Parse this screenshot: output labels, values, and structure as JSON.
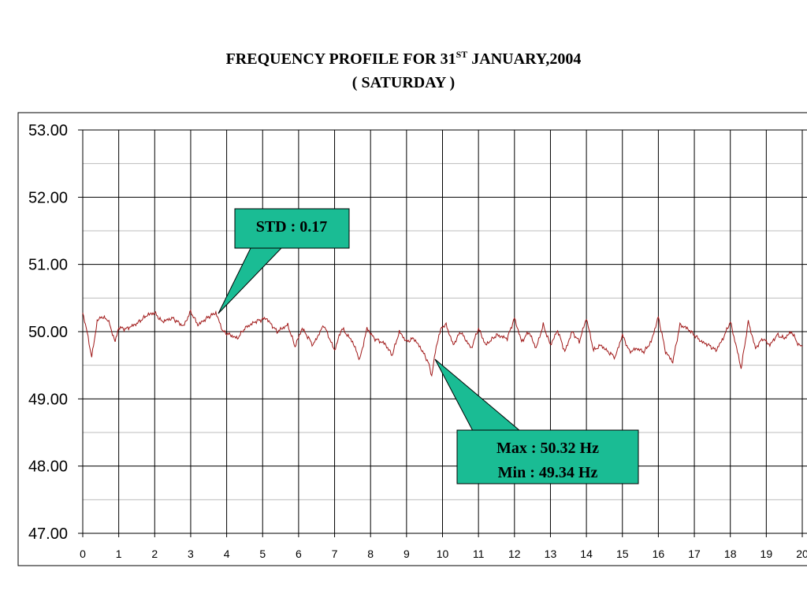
{
  "title": {
    "line1_pre": "FREQUENCY PROFILE FOR  31",
    "line1_sup": "ST",
    "line1_post": " JANUARY,2004",
    "line2": "( SATURDAY )"
  },
  "callouts": {
    "std": "STD : 0.17",
    "max": "Max : 50.32 Hz",
    "min": "Min  : 49.34 Hz"
  },
  "colors": {
    "series": "#a01818",
    "callout_fill": "#1abc94",
    "grid_major": "#000000",
    "grid_minor": "#bdbdbd"
  },
  "chart_data": {
    "type": "line",
    "title": "FREQUENCY PROFILE FOR  31ST JANUARY,2004 ( SATURDAY )",
    "xlabel": "",
    "ylabel": "",
    "xlim": [
      0,
      20
    ],
    "ylim": [
      47.0,
      53.0
    ],
    "y_ticks": [
      "47.00",
      "48.00",
      "49.00",
      "50.00",
      "51.00",
      "52.00",
      "53.00"
    ],
    "x_ticks": [
      "0",
      "1",
      "2",
      "3",
      "4",
      "5",
      "6",
      "7",
      "8",
      "9",
      "10",
      "11",
      "12",
      "13",
      "14",
      "15",
      "16",
      "17",
      "18",
      "19",
      "20"
    ],
    "grid": true,
    "series": [
      {
        "x": [
          0,
          0.1,
          0.25,
          0.4,
          0.5,
          0.7,
          0.9,
          1.0,
          1.2,
          1.5,
          1.8,
          2.0,
          2.2,
          2.5,
          2.8,
          3.0,
          3.2,
          3.5,
          3.7,
          3.9,
          4.1,
          4.3,
          4.5,
          4.8,
          5.1,
          5.4,
          5.7,
          5.9,
          6.1,
          6.4,
          6.7,
          7.0,
          7.2,
          7.5,
          7.7,
          7.9,
          8.1,
          8.4,
          8.6,
          8.8,
          9.0,
          9.2,
          9.4,
          9.6,
          9.7,
          9.8,
          9.9,
          10.0,
          10.1,
          10.3,
          10.5,
          10.8,
          11.0,
          11.2,
          11.5,
          11.8,
          12.0,
          12.2,
          12.4,
          12.6,
          12.8,
          13.0,
          13.2,
          13.4,
          13.6,
          13.8,
          14.0,
          14.2,
          14.4,
          14.6,
          14.8,
          15.0,
          15.2,
          15.4,
          15.6,
          15.8,
          16.0,
          16.2,
          16.4,
          16.6,
          16.8,
          17.0,
          17.2,
          17.4,
          17.6,
          17.8,
          18.0,
          18.2,
          18.3,
          18.5,
          18.7,
          18.9,
          19.1,
          19.3,
          19.5,
          19.7,
          19.9,
          20.0
        ],
        "y": [
          50.28,
          50.05,
          49.62,
          50.15,
          50.22,
          50.18,
          49.85,
          50.06,
          50.04,
          50.12,
          50.25,
          50.28,
          50.15,
          50.2,
          50.08,
          50.3,
          50.1,
          50.22,
          50.28,
          50.0,
          49.95,
          49.9,
          50.05,
          50.15,
          50.2,
          50.0,
          50.1,
          49.78,
          50.05,
          49.8,
          50.1,
          49.72,
          50.05,
          49.85,
          49.58,
          50.05,
          49.9,
          49.82,
          49.65,
          50.0,
          49.85,
          49.9,
          49.75,
          49.55,
          49.34,
          49.7,
          49.95,
          50.08,
          50.1,
          49.8,
          50.0,
          49.75,
          50.05,
          49.8,
          49.95,
          49.9,
          50.2,
          49.85,
          50.0,
          49.75,
          50.1,
          49.8,
          50.02,
          49.7,
          50.0,
          49.85,
          50.2,
          49.72,
          49.8,
          49.7,
          49.62,
          49.95,
          49.7,
          49.75,
          49.7,
          49.85,
          50.22,
          49.7,
          49.55,
          50.1,
          50.05,
          49.95,
          49.85,
          49.8,
          49.72,
          49.9,
          50.15,
          49.7,
          49.45,
          50.15,
          49.75,
          49.9,
          49.8,
          49.95,
          49.9,
          50.0,
          49.8,
          49.78
        ]
      }
    ]
  }
}
